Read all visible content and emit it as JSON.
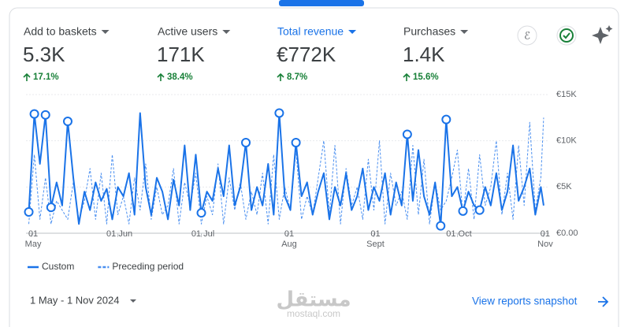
{
  "metrics": [
    {
      "label": "Add to baskets",
      "value": "5.3K",
      "change": "17.1%"
    },
    {
      "label": "Active users",
      "value": "171K",
      "change": "38.4%"
    },
    {
      "label": "Total revenue",
      "value": "€772K",
      "change": "8.7%"
    },
    {
      "label": "Purchases",
      "value": "1.4K",
      "change": "15.6%"
    }
  ],
  "selected_metric": 2,
  "chart_data": {
    "type": "line",
    "x": [
      "2024-04-30",
      "2024-05-02",
      "2024-05-04",
      "2024-05-06",
      "2024-05-08",
      "2024-05-10",
      "2024-05-12",
      "2024-05-14",
      "2024-05-16",
      "2024-05-18",
      "2024-05-20",
      "2024-05-22",
      "2024-05-24",
      "2024-05-26",
      "2024-05-28",
      "2024-05-30",
      "2024-06-01",
      "2024-06-03",
      "2024-06-05",
      "2024-06-07",
      "2024-06-09",
      "2024-06-11",
      "2024-06-13",
      "2024-06-15",
      "2024-06-17",
      "2024-06-19",
      "2024-06-21",
      "2024-06-23",
      "2024-06-25",
      "2024-06-27",
      "2024-06-29",
      "2024-07-01",
      "2024-07-03",
      "2024-07-05",
      "2024-07-07",
      "2024-07-09",
      "2024-07-11",
      "2024-07-13",
      "2024-07-15",
      "2024-07-17",
      "2024-07-19",
      "2024-07-21",
      "2024-07-23",
      "2024-07-25",
      "2024-07-27",
      "2024-07-29",
      "2024-07-31",
      "2024-08-02",
      "2024-08-04",
      "2024-08-06",
      "2024-08-08",
      "2024-08-10",
      "2024-08-12",
      "2024-08-14",
      "2024-08-16",
      "2024-08-18",
      "2024-08-20",
      "2024-08-22",
      "2024-08-24",
      "2024-08-26",
      "2024-08-28",
      "2024-08-30",
      "2024-09-01",
      "2024-09-03",
      "2024-09-05",
      "2024-09-07",
      "2024-09-09",
      "2024-09-11",
      "2024-09-13",
      "2024-09-15",
      "2024-09-17",
      "2024-09-19",
      "2024-09-21",
      "2024-09-23",
      "2024-09-25",
      "2024-09-27",
      "2024-09-29",
      "2024-10-01",
      "2024-10-03",
      "2024-10-05",
      "2024-10-07",
      "2024-10-09",
      "2024-10-11",
      "2024-10-13",
      "2024-10-15",
      "2024-10-17",
      "2024-10-19",
      "2024-10-21",
      "2024-10-23",
      "2024-10-25",
      "2024-10-27",
      "2024-10-29",
      "2024-10-31",
      "2024-11-01"
    ],
    "series": [
      {
        "name": "Custom",
        "color": "#1a73e8",
        "dashed": false,
        "markers": [
          0,
          1,
          3,
          4,
          7,
          31,
          39,
          45,
          48,
          68,
          74,
          75,
          78,
          81
        ],
        "values": [
          2300,
          12900,
          7500,
          12800,
          2800,
          5500,
          3000,
          12100,
          6000,
          1000,
          4500,
          2500,
          5500,
          3500,
          4800,
          1500,
          5000,
          4000,
          6500,
          2000,
          13000,
          5000,
          2000,
          6000,
          4500,
          1500,
          5800,
          3000,
          9500,
          2500,
          8500,
          2200,
          4500,
          3500,
          7000,
          4000,
          9500,
          3000,
          5000,
          9800,
          2500,
          5000,
          3000,
          7500,
          2000,
          13000,
          4000,
          2500,
          9800,
          4000,
          5500,
          2000,
          4500,
          6500,
          1500,
          5000,
          3000,
          6500,
          2500,
          4000,
          7000,
          2500,
          5000,
          3500,
          6500,
          2000,
          5500,
          3000,
          10700,
          3500,
          9000,
          4000,
          2000,
          5500,
          800,
          12300,
          4000,
          5000,
          2400,
          4500,
          3000,
          2500,
          5000,
          3000,
          6500,
          2500,
          4500,
          9500,
          3500,
          5000,
          7000,
          2000,
          5000,
          3000
        ]
      },
      {
        "name": "Preceding period",
        "color": "#4a8ff0",
        "dashed": true,
        "values": [
          1000,
          8500,
          1500,
          6000,
          1000,
          3500,
          2500,
          1500,
          5500,
          1500,
          3500,
          7000,
          1500,
          6500,
          1000,
          8500,
          2000,
          4000,
          1000,
          6000,
          2500,
          7500,
          1500,
          5000,
          2000,
          3000,
          7000,
          1000,
          5500,
          3000,
          6500,
          1000,
          4000,
          2000,
          7500,
          1000,
          6000,
          2500,
          5500,
          1500,
          4500,
          2000,
          6500,
          1000,
          8500,
          1500,
          5000,
          2500,
          9000,
          1500,
          4000,
          2000,
          6000,
          10000,
          2000,
          9500,
          1000,
          7000,
          3000,
          5000,
          1500,
          8000,
          2500,
          10000,
          1000,
          6500,
          3000,
          4500,
          1500,
          9500,
          2000,
          8000,
          1000,
          5500,
          2500,
          3500,
          6000,
          9000,
          2000,
          7000,
          1500,
          8500,
          3000,
          5000,
          10000,
          2000,
          6500,
          1500,
          9500,
          3000,
          12000,
          2500,
          6000,
          12500
        ]
      }
    ],
    "xlim": [
      "2024-04-29",
      "2024-11-03"
    ],
    "xticks": [
      {
        "value": "2024-05-01",
        "label": "01 May"
      },
      {
        "value": "2024-06-01",
        "label": "01 Jun"
      },
      {
        "value": "2024-07-01",
        "label": "01 Jul"
      },
      {
        "value": "2024-08-01",
        "label": "01 Aug"
      },
      {
        "value": "2024-09-01",
        "label": "01 Sept"
      },
      {
        "value": "2024-10-01",
        "label": "01 Oct"
      },
      {
        "value": "2024-11-01",
        "label": "01 Nov"
      }
    ],
    "ylim": [
      0,
      15000
    ],
    "yticks": [
      {
        "value": 0,
        "label": "€0.00"
      },
      {
        "value": 5000,
        "label": "€5K"
      },
      {
        "value": 10000,
        "label": "€10K"
      },
      {
        "value": 15000,
        "label": "€15K"
      }
    ],
    "grid": true
  },
  "date_range": "1 May - 1 Nov 2024",
  "link": "View reports snapshot",
  "watermark": {
    "arabic": "مستقل",
    "latin": "mostaql.com"
  }
}
